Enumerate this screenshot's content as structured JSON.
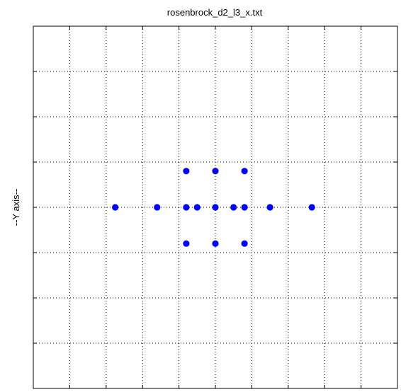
{
  "chart_data": {
    "type": "scatter",
    "title": "rosenbrock_d2_l3_x.txt",
    "xlabel": "",
    "ylabel": "--Y axis--",
    "xlim": [
      -5,
      5
    ],
    "ylim": [
      -4,
      4
    ],
    "grid": true,
    "legend": "none",
    "marker_color": "#0000ff",
    "x_ticks": [
      -4,
      -3,
      -2,
      -1,
      0,
      1,
      2,
      3,
      4
    ],
    "y_ticks": [
      -4,
      -3,
      -2,
      -1,
      0,
      1,
      2,
      3,
      4
    ],
    "points": [
      {
        "x": -2.75,
        "y": 0
      },
      {
        "x": -1.6,
        "y": 0
      },
      {
        "x": -0.8,
        "y": 0.8
      },
      {
        "x": 0,
        "y": 0.8
      },
      {
        "x": 0.8,
        "y": 0.8
      },
      {
        "x": -0.8,
        "y": 0
      },
      {
        "x": -0.5,
        "y": 0
      },
      {
        "x": 0,
        "y": 0
      },
      {
        "x": 0.5,
        "y": 0
      },
      {
        "x": 0.8,
        "y": 0
      },
      {
        "x": 1.5,
        "y": 0
      },
      {
        "x": 2.65,
        "y": 0
      },
      {
        "x": -0.8,
        "y": -0.8
      },
      {
        "x": 0,
        "y": -0.8
      },
      {
        "x": 0.8,
        "y": -0.8
      }
    ]
  }
}
